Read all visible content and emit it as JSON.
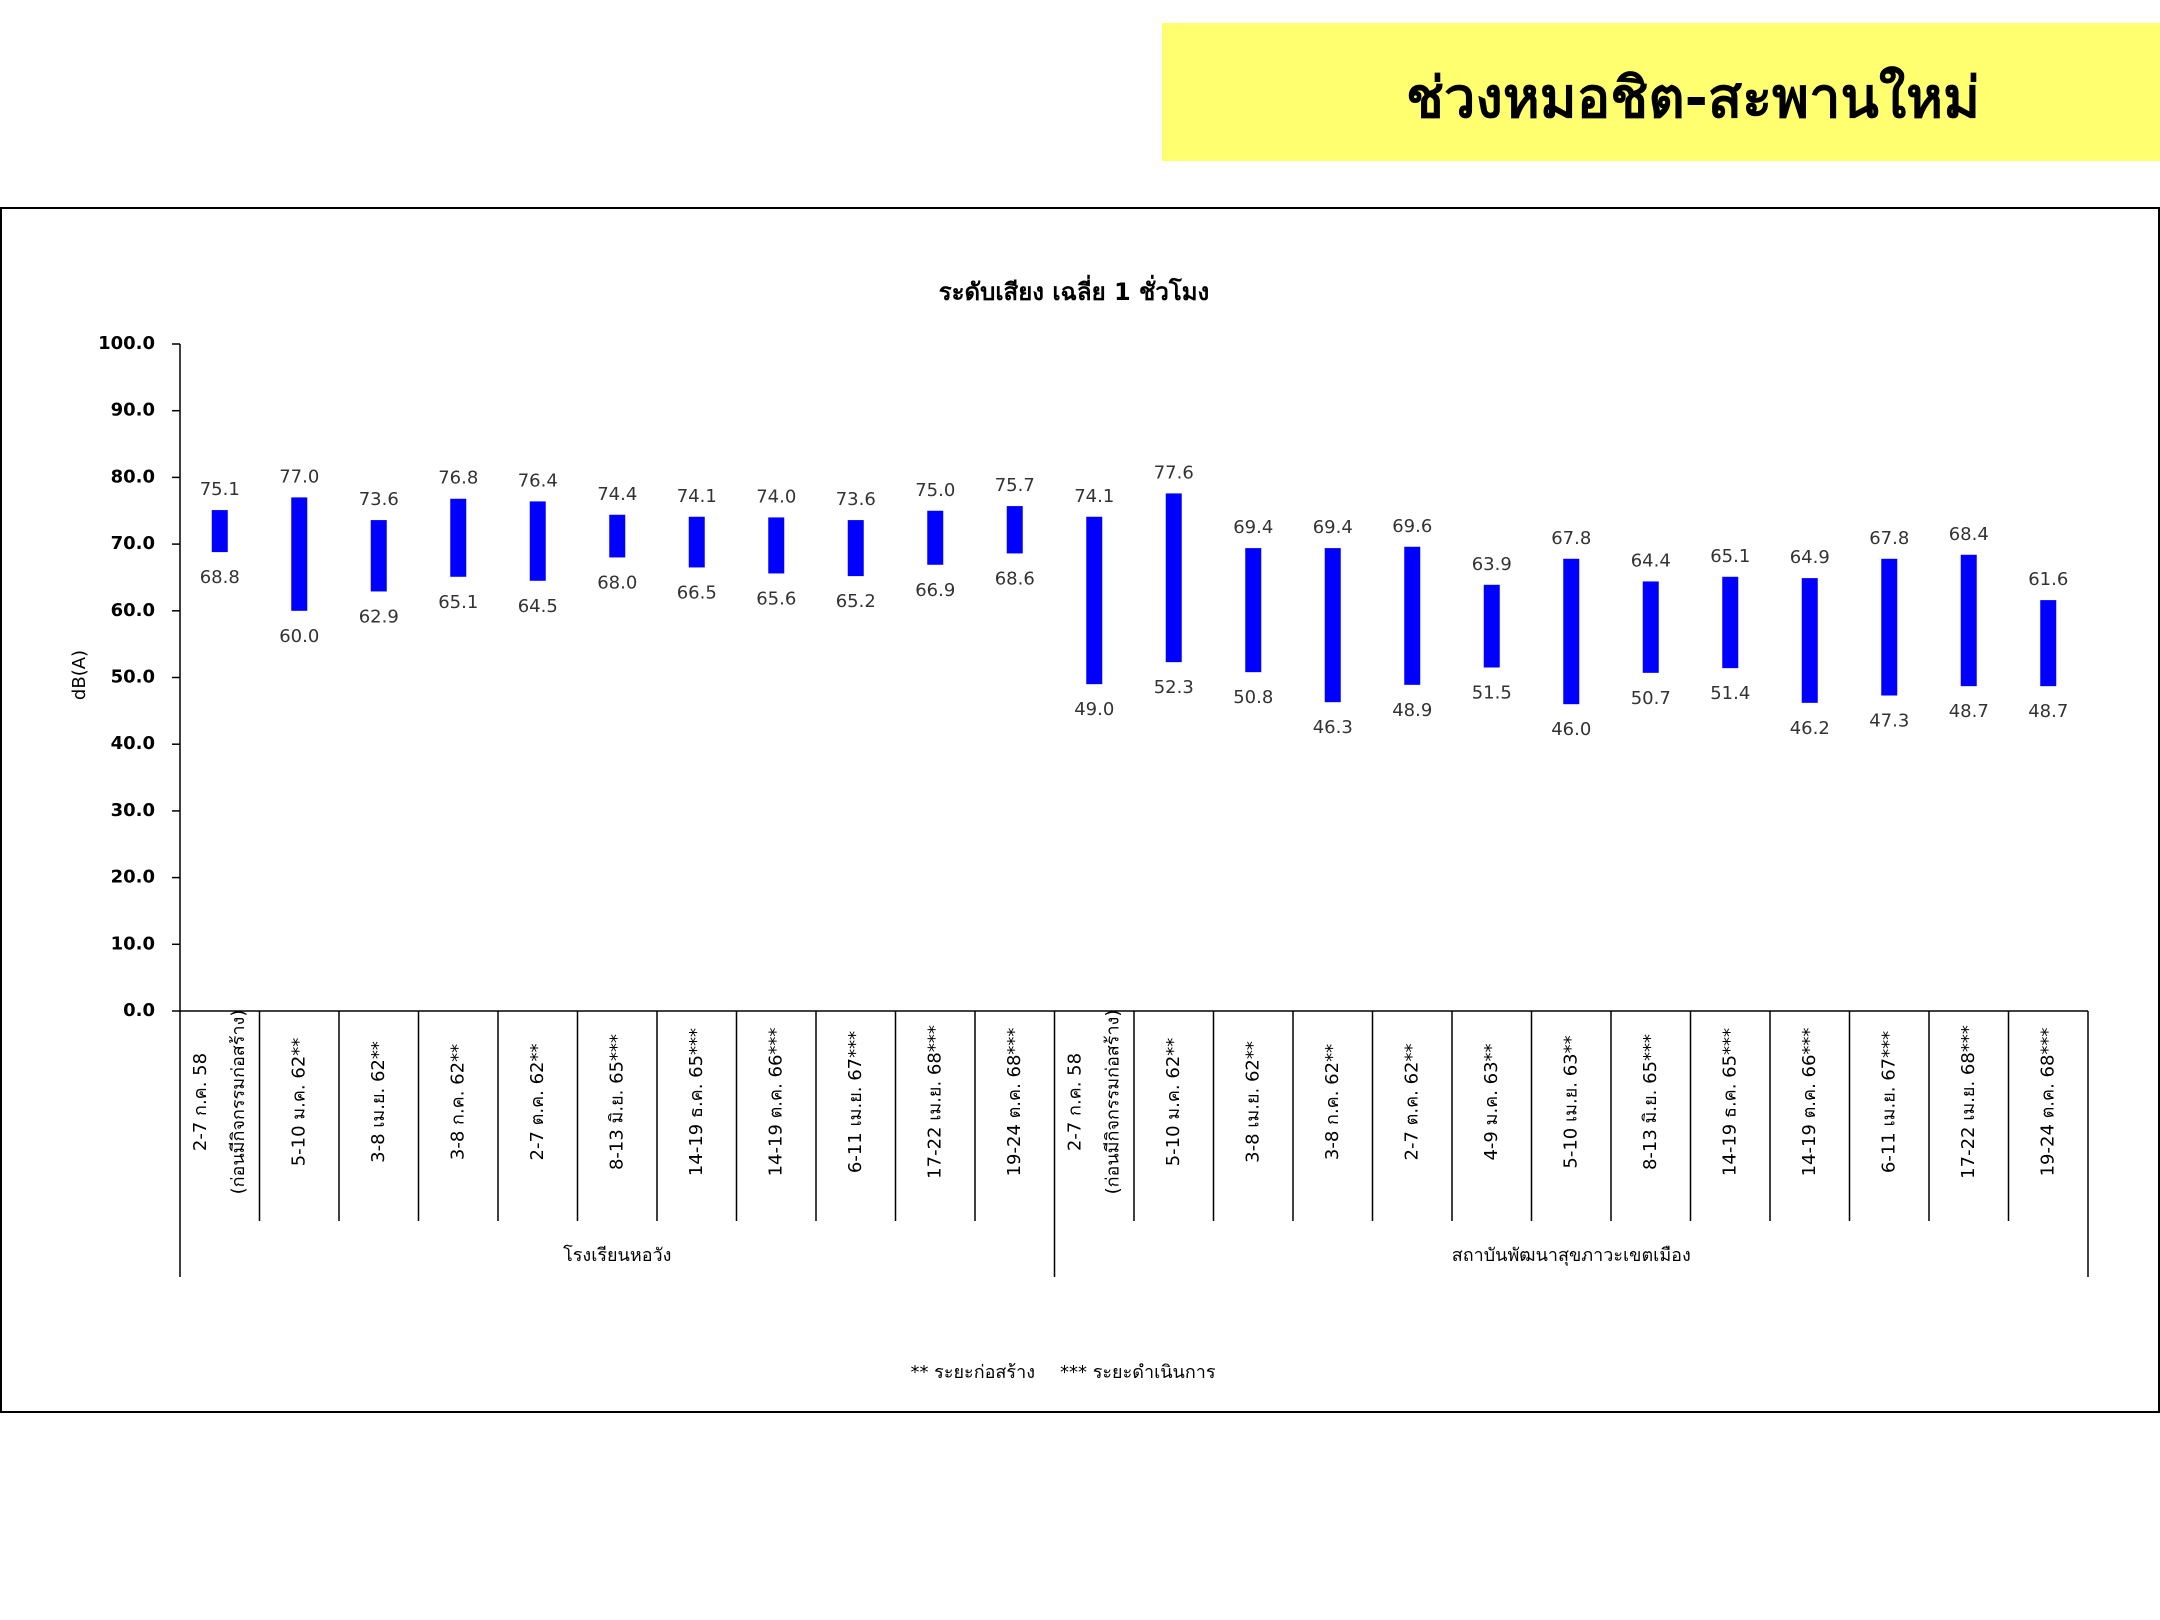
{
  "header": {
    "title": "ช่วงหมอชิต-สะพานใหม่"
  },
  "chart_data": {
    "type": "floating-bar",
    "title": "ระดับเสียง เฉลี่ย 1 ชั่วโมง",
    "y_label": "dB(A)",
    "ylim": [
      0,
      100
    ],
    "yticks": [
      {
        "value": 0,
        "label": "0.0"
      },
      {
        "value": 10,
        "label": "10.0"
      },
      {
        "value": 20,
        "label": "20.0"
      },
      {
        "value": 30,
        "label": "30.0"
      },
      {
        "value": 40,
        "label": "40.0"
      },
      {
        "value": 50,
        "label": "50.0"
      },
      {
        "value": 60,
        "label": "60.0"
      },
      {
        "value": 70,
        "label": "70.0"
      },
      {
        "value": 80,
        "label": "80.0"
      },
      {
        "value": 90,
        "label": "90.0"
      },
      {
        "value": 100,
        "label": "100.0"
      }
    ],
    "color": "#0000ff",
    "groups": [
      {
        "name": "โรงเรียนหอวัง",
        "categories": [
          [
            "2-7 ก.ค. 58",
            "(ก่อนมีกิจกรรมก่อสร้าง)"
          ],
          [
            "5-10 ม.ค. 62**"
          ],
          [
            "3-8 เม.ย. 62**"
          ],
          [
            "3-8 ก.ค. 62**"
          ],
          [
            "2-7 ต.ค. 62**"
          ],
          [
            "8-13 มิ.ย. 65***"
          ],
          [
            "14-19 ธ.ค. 65***"
          ],
          [
            "14-19 ต.ค. 66***"
          ],
          [
            "6-11 เม.ย. 67***"
          ],
          [
            "17-22 เม.ย. 68***"
          ],
          [
            "19-24 ต.ค. 68***"
          ]
        ],
        "high": [
          75.1,
          77.0,
          73.6,
          76.8,
          76.4,
          74.4,
          74.1,
          74.0,
          73.6,
          75.0,
          75.7
        ],
        "high_labels": [
          "75.1",
          "77.0",
          "73.6",
          "76.8",
          "76.4",
          "74.4",
          "74.1",
          "74.0",
          "73.6",
          "75.0",
          "75.7"
        ],
        "low": [
          68.8,
          60.0,
          62.9,
          65.1,
          64.5,
          68.0,
          66.5,
          65.6,
          65.2,
          66.9,
          68.6
        ],
        "low_labels": [
          "68.8",
          "60.0",
          "62.9",
          "65.1",
          "64.5",
          "68.0",
          "66.5",
          "65.6",
          "65.2",
          "66.9",
          "68.6"
        ]
      },
      {
        "name": "สถาบันพัฒนาสุขภาวะเขตเมือง",
        "categories": [
          [
            "2-7 ก.ค. 58",
            "(ก่อนมีกิจกรรมก่อสร้าง)"
          ],
          [
            "5-10 ม.ค. 62**"
          ],
          [
            "3-8 เม.ย. 62**"
          ],
          [
            "3-8 ก.ค. 62**"
          ],
          [
            "2-7 ต.ค. 62**"
          ],
          [
            "4-9 ม.ค. 63**"
          ],
          [
            "5-10 เม.ย. 63**"
          ],
          [
            "8-13 มิ.ย. 65***"
          ],
          [
            "14-19 ธ.ค. 65***"
          ],
          [
            "14-19 ต.ค. 66***"
          ],
          [
            "6-11 เม.ย. 67***"
          ],
          [
            "17-22 เม.ย. 68***"
          ],
          [
            "19-24 ต.ค. 68***"
          ]
        ],
        "high": [
          74.1,
          77.6,
          69.4,
          69.4,
          69.6,
          63.9,
          67.8,
          64.4,
          65.1,
          64.9,
          67.8,
          68.4,
          61.6
        ],
        "high_labels": [
          "74.1",
          "77.6",
          "69.4",
          "69.4",
          "69.6",
          "63.9",
          "67.8",
          "64.4",
          "65.1",
          "64.9",
          "67.8",
          "68.4",
          "61.6"
        ],
        "low": [
          49.0,
          52.3,
          50.8,
          46.3,
          48.9,
          51.5,
          46.0,
          50.7,
          51.4,
          46.2,
          47.3,
          48.7,
          48.7
        ],
        "low_labels": [
          "49.0",
          "52.3",
          "50.8",
          "46.3",
          "48.9",
          "51.5",
          "46.0",
          "50.7",
          "51.4",
          "46.2",
          "47.3",
          "48.7",
          "48.7"
        ]
      }
    ],
    "notes": [
      "** ระยะก่อสร้าง",
      "*** ระยะดำเนินการ"
    ]
  }
}
